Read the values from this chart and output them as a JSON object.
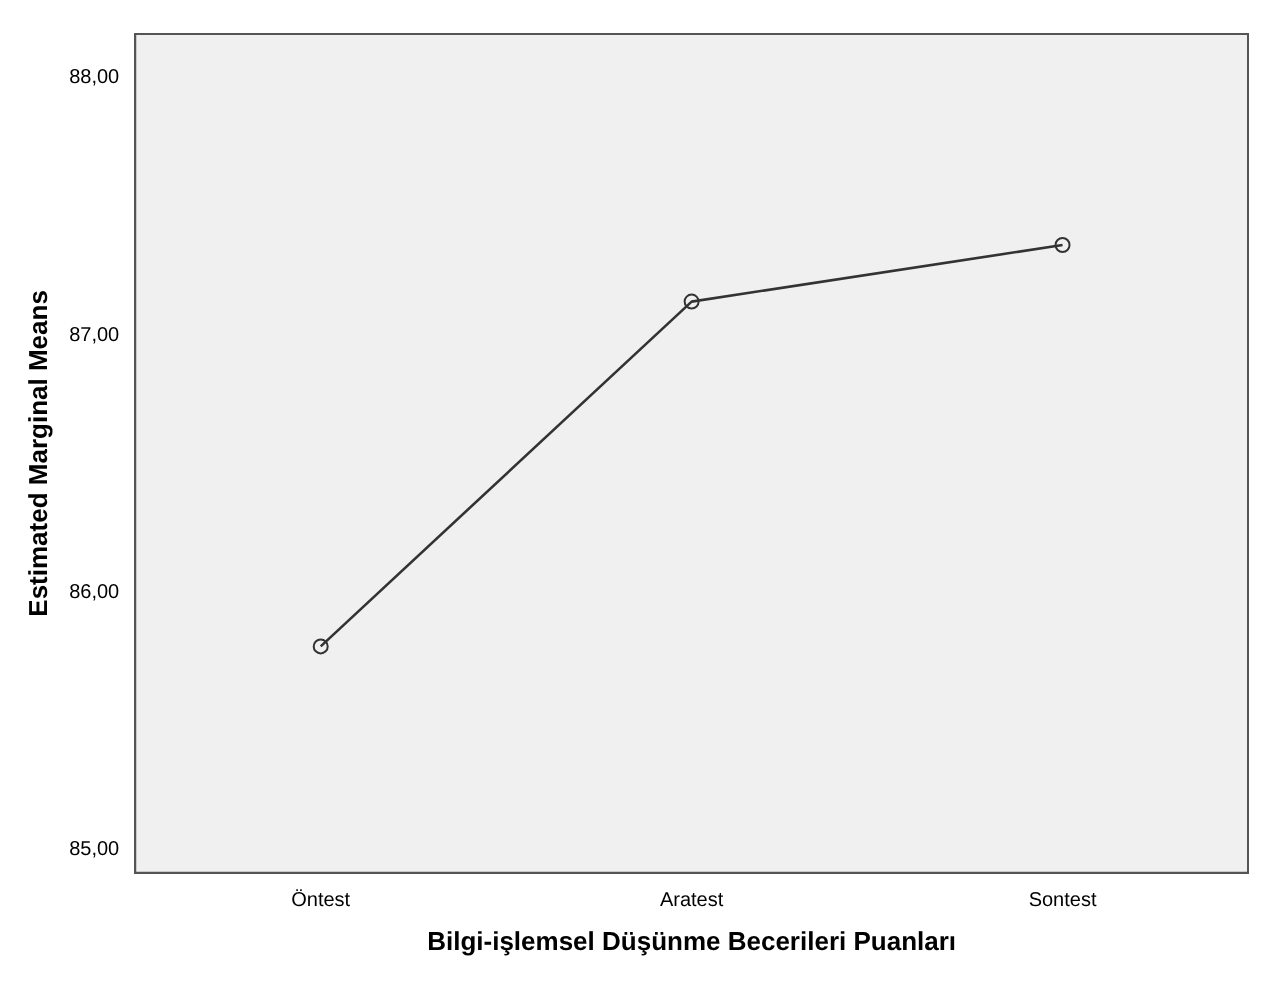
{
  "chart_data": {
    "type": "line",
    "xlabel": "Bilgi-işlemsel Düşünme Becerileri Puanları",
    "ylabel": "Estimated Marginal Means",
    "categories": [
      "Öntest",
      "Aratest",
      "Sontest"
    ],
    "series": [
      {
        "color": "#333333",
        "values": [
          85.79,
          87.13,
          87.35
        ]
      }
    ],
    "ylim": [
      84.91,
      88.17
    ],
    "yticks": [
      {
        "value": 85,
        "label": "85,00"
      },
      {
        "value": 86,
        "label": "86,00"
      },
      {
        "value": 87,
        "label": "87,00"
      },
      {
        "value": 88,
        "label": "88,00"
      }
    ],
    "grid": false,
    "legend": false,
    "marker": "circle",
    "line_style": "solid"
  }
}
